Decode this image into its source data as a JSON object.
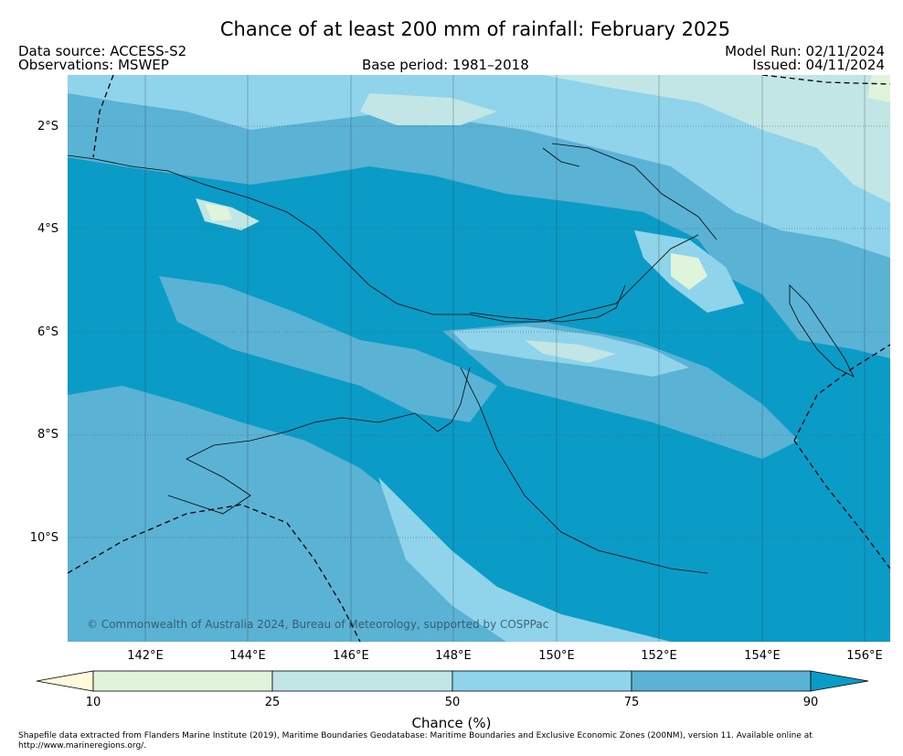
{
  "header": {
    "title": "Chance of at least 200 mm of rainfall: February 2025",
    "data_source": "Data source: ACCESS-S2",
    "observations": "Observations: MSWEP",
    "base_period": "Base period: 1981–2018",
    "model_run": "Model Run: 02/11/2024",
    "issued": "Issued: 04/11/2024"
  },
  "map": {
    "latitudes": [
      "2°S",
      "4°S",
      "6°S",
      "8°S",
      "10°S"
    ],
    "longitudes": [
      "142°E",
      "144°E",
      "146°E",
      "148°E",
      "150°E",
      "152°E",
      "154°E",
      "156°E"
    ],
    "copyright": "© Commonwealth of Australia 2024, Bureau of Meteorology, supported by COSPPac",
    "colors": {
      "lt10": "#fffadc",
      "c10_25": "#dff4db",
      "c25_50": "#c2e5e5",
      "c50_75": "#8fd4ea",
      "c75_90": "#5ab3d4",
      "gt90": "#0a9cc7"
    }
  },
  "colorbar": {
    "ticks": [
      "10",
      "25",
      "50",
      "75",
      "90"
    ],
    "label": "Chance (%)"
  },
  "footer": {
    "text": "Shapefile data extracted from Flanders Marine Institute (2019), Maritime Boundaries Geodatabase: Maritime Boundaries and Exclusive Economic Zones (200NM), version 11. Available online at http://www.marineregions.org/."
  }
}
